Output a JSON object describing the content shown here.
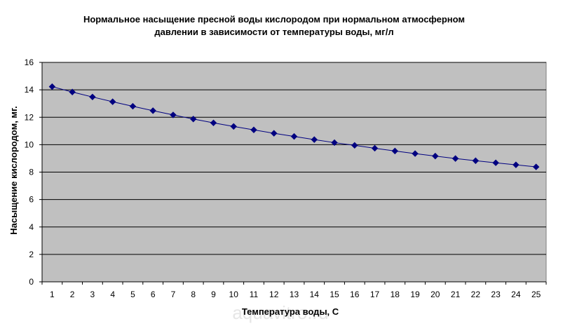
{
  "chart_data": {
    "type": "line",
    "title_lines": [
      "Нормальное насыщение пресной воды кислородом при нормальном атмосферном",
      "давлении в зависимости от температуры воды, мг/л"
    ],
    "xlabel": "Температура воды, C",
    "ylabel": "Насыщение кислородом, мг.",
    "ylim": [
      0,
      16
    ],
    "yticks": [
      0,
      2,
      4,
      6,
      8,
      10,
      12,
      14,
      16
    ],
    "grid": true,
    "legend": "none",
    "plot_background": "#c0c0c0",
    "line_color": "#000080",
    "marker": "diamond",
    "x": [
      1,
      2,
      3,
      4,
      5,
      6,
      7,
      8,
      9,
      10,
      11,
      12,
      13,
      14,
      15,
      16,
      17,
      18,
      19,
      20,
      21,
      22,
      23,
      24,
      25
    ],
    "series": [
      {
        "values": [
          14.23,
          13.84,
          13.48,
          13.13,
          12.8,
          12.48,
          12.17,
          11.87,
          11.59,
          11.33,
          11.08,
          10.83,
          10.6,
          10.37,
          10.15,
          9.95,
          9.74,
          9.54,
          9.35,
          9.17,
          8.99,
          8.83,
          8.68,
          8.53,
          8.38
        ]
      }
    ]
  },
  "watermark": "aquavitro.ru"
}
